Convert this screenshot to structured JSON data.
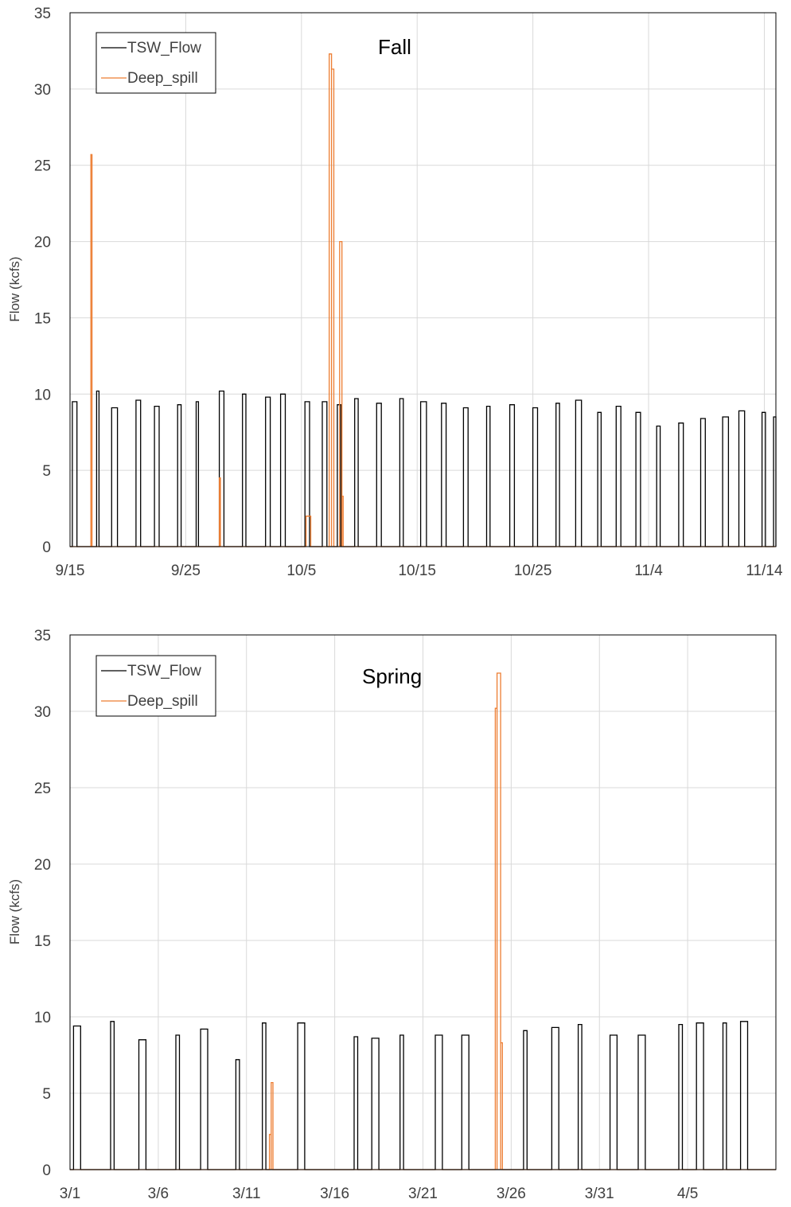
{
  "colors": {
    "tsw": "#000000",
    "spill": "#ED7D31",
    "grid": "#D9D9D9",
    "frame": "#000000"
  },
  "chart_data": [
    {
      "type": "line",
      "title": "Fall",
      "ylabel": "Flow (kcfs)",
      "xlabel": "",
      "ylim": [
        0,
        35
      ],
      "y_ticks": [
        "0",
        "5",
        "10",
        "15",
        "20",
        "25",
        "30",
        "35"
      ],
      "x_range_days": [
        0,
        61
      ],
      "x_tick_labels": [
        "9/15",
        "9/25",
        "10/5",
        "10/15",
        "10/25",
        "11/4",
        "11/14"
      ],
      "grid": true,
      "legend": {
        "placement": "top-left",
        "entries": [
          "TSW_Flow",
          "Deep_spill"
        ]
      },
      "series": [
        {
          "name": "TSW_Flow",
          "color": "#000000",
          "pulses": [
            [
              0.2,
              0.6,
              9.5
            ],
            [
              2.3,
              2.5,
              10.2
            ],
            [
              3.6,
              4.1,
              9.1
            ],
            [
              5.7,
              6.1,
              9.6
            ],
            [
              7.3,
              7.7,
              9.2
            ],
            [
              9.3,
              9.6,
              9.3
            ],
            [
              10.9,
              11.1,
              9.5
            ],
            [
              12.9,
              13.3,
              10.2
            ],
            [
              14.9,
              15.2,
              10.0
            ],
            [
              16.9,
              17.3,
              9.8
            ],
            [
              18.2,
              18.6,
              10.0
            ],
            [
              20.3,
              20.7,
              9.5
            ],
            [
              21.8,
              22.2,
              9.5
            ],
            [
              23.1,
              23.4,
              9.3
            ],
            [
              24.6,
              24.9,
              9.7
            ],
            [
              26.5,
              26.9,
              9.4
            ],
            [
              28.5,
              28.8,
              9.7
            ],
            [
              30.3,
              30.8,
              9.5
            ],
            [
              32.1,
              32.5,
              9.4
            ],
            [
              34.0,
              34.4,
              9.1
            ],
            [
              36.0,
              36.3,
              9.2
            ],
            [
              38.0,
              38.4,
              9.3
            ],
            [
              40.0,
              40.4,
              9.1
            ],
            [
              42.0,
              42.3,
              9.4
            ],
            [
              43.7,
              44.2,
              9.6
            ],
            [
              45.6,
              45.9,
              8.8
            ],
            [
              47.2,
              47.6,
              9.2
            ],
            [
              48.9,
              49.3,
              8.8
            ],
            [
              50.7,
              51.0,
              7.9
            ],
            [
              52.6,
              53.0,
              8.1
            ],
            [
              54.5,
              54.9,
              8.4
            ],
            [
              56.4,
              56.9,
              8.5
            ],
            [
              57.8,
              58.3,
              8.9
            ],
            [
              59.8,
              60.1,
              8.8
            ],
            [
              60.8,
              61.0,
              8.5
            ]
          ]
        },
        {
          "name": "Deep_spill",
          "color": "#ED7D31",
          "pulses": [
            [
              1.8,
              1.9,
              25.7
            ],
            [
              12.9,
              13.0,
              4.5
            ],
            [
              20.4,
              20.8,
              2.0
            ],
            [
              22.4,
              22.6,
              32.3
            ],
            [
              22.6,
              22.8,
              31.3
            ],
            [
              23.3,
              23.5,
              20.0
            ],
            [
              23.5,
              23.6,
              3.3
            ]
          ]
        }
      ]
    },
    {
      "type": "line",
      "title": "Spring",
      "ylabel": "Flow (kcfs)",
      "xlabel": "",
      "ylim": [
        0,
        35
      ],
      "y_ticks": [
        "0",
        "5",
        "10",
        "15",
        "20",
        "25",
        "30",
        "35"
      ],
      "x_range_days": [
        0,
        40
      ],
      "x_tick_labels": [
        "3/1",
        "3/6",
        "3/11",
        "3/16",
        "3/21",
        "3/26",
        "3/31",
        "4/5"
      ],
      "grid": true,
      "legend": {
        "placement": "top-left",
        "entries": [
          "TSW_Flow",
          "Deep_spill"
        ]
      },
      "series": [
        {
          "name": "TSW_Flow",
          "color": "#000000",
          "pulses": [
            [
              0.2,
              0.6,
              9.4
            ],
            [
              2.3,
              2.5,
              9.7
            ],
            [
              3.9,
              4.3,
              8.5
            ],
            [
              6.0,
              6.2,
              8.8
            ],
            [
              7.4,
              7.8,
              9.2
            ],
            [
              9.4,
              9.6,
              7.2
            ],
            [
              10.9,
              11.1,
              9.6
            ],
            [
              12.9,
              13.3,
              9.6
            ],
            [
              16.1,
              16.3,
              8.7
            ],
            [
              17.1,
              17.5,
              8.6
            ],
            [
              18.7,
              18.9,
              8.8
            ],
            [
              20.7,
              21.1,
              8.8
            ],
            [
              22.2,
              22.6,
              8.8
            ],
            [
              25.7,
              25.9,
              9.1
            ],
            [
              27.3,
              27.7,
              9.3
            ],
            [
              28.8,
              29.0,
              9.5
            ],
            [
              30.6,
              31.0,
              8.8
            ],
            [
              32.2,
              32.6,
              8.8
            ],
            [
              34.5,
              34.7,
              9.5
            ],
            [
              35.5,
              35.9,
              9.6
            ],
            [
              37.0,
              37.2,
              9.6
            ],
            [
              38.0,
              38.4,
              9.7
            ]
          ]
        },
        {
          "name": "Deep_spill",
          "color": "#ED7D31",
          "pulses": [
            [
              11.3,
              11.4,
              2.3
            ],
            [
              11.4,
              11.5,
              5.7
            ],
            [
              24.1,
              24.2,
              30.2
            ],
            [
              24.2,
              24.4,
              32.5
            ],
            [
              24.4,
              24.5,
              8.3
            ]
          ]
        }
      ]
    }
  ]
}
